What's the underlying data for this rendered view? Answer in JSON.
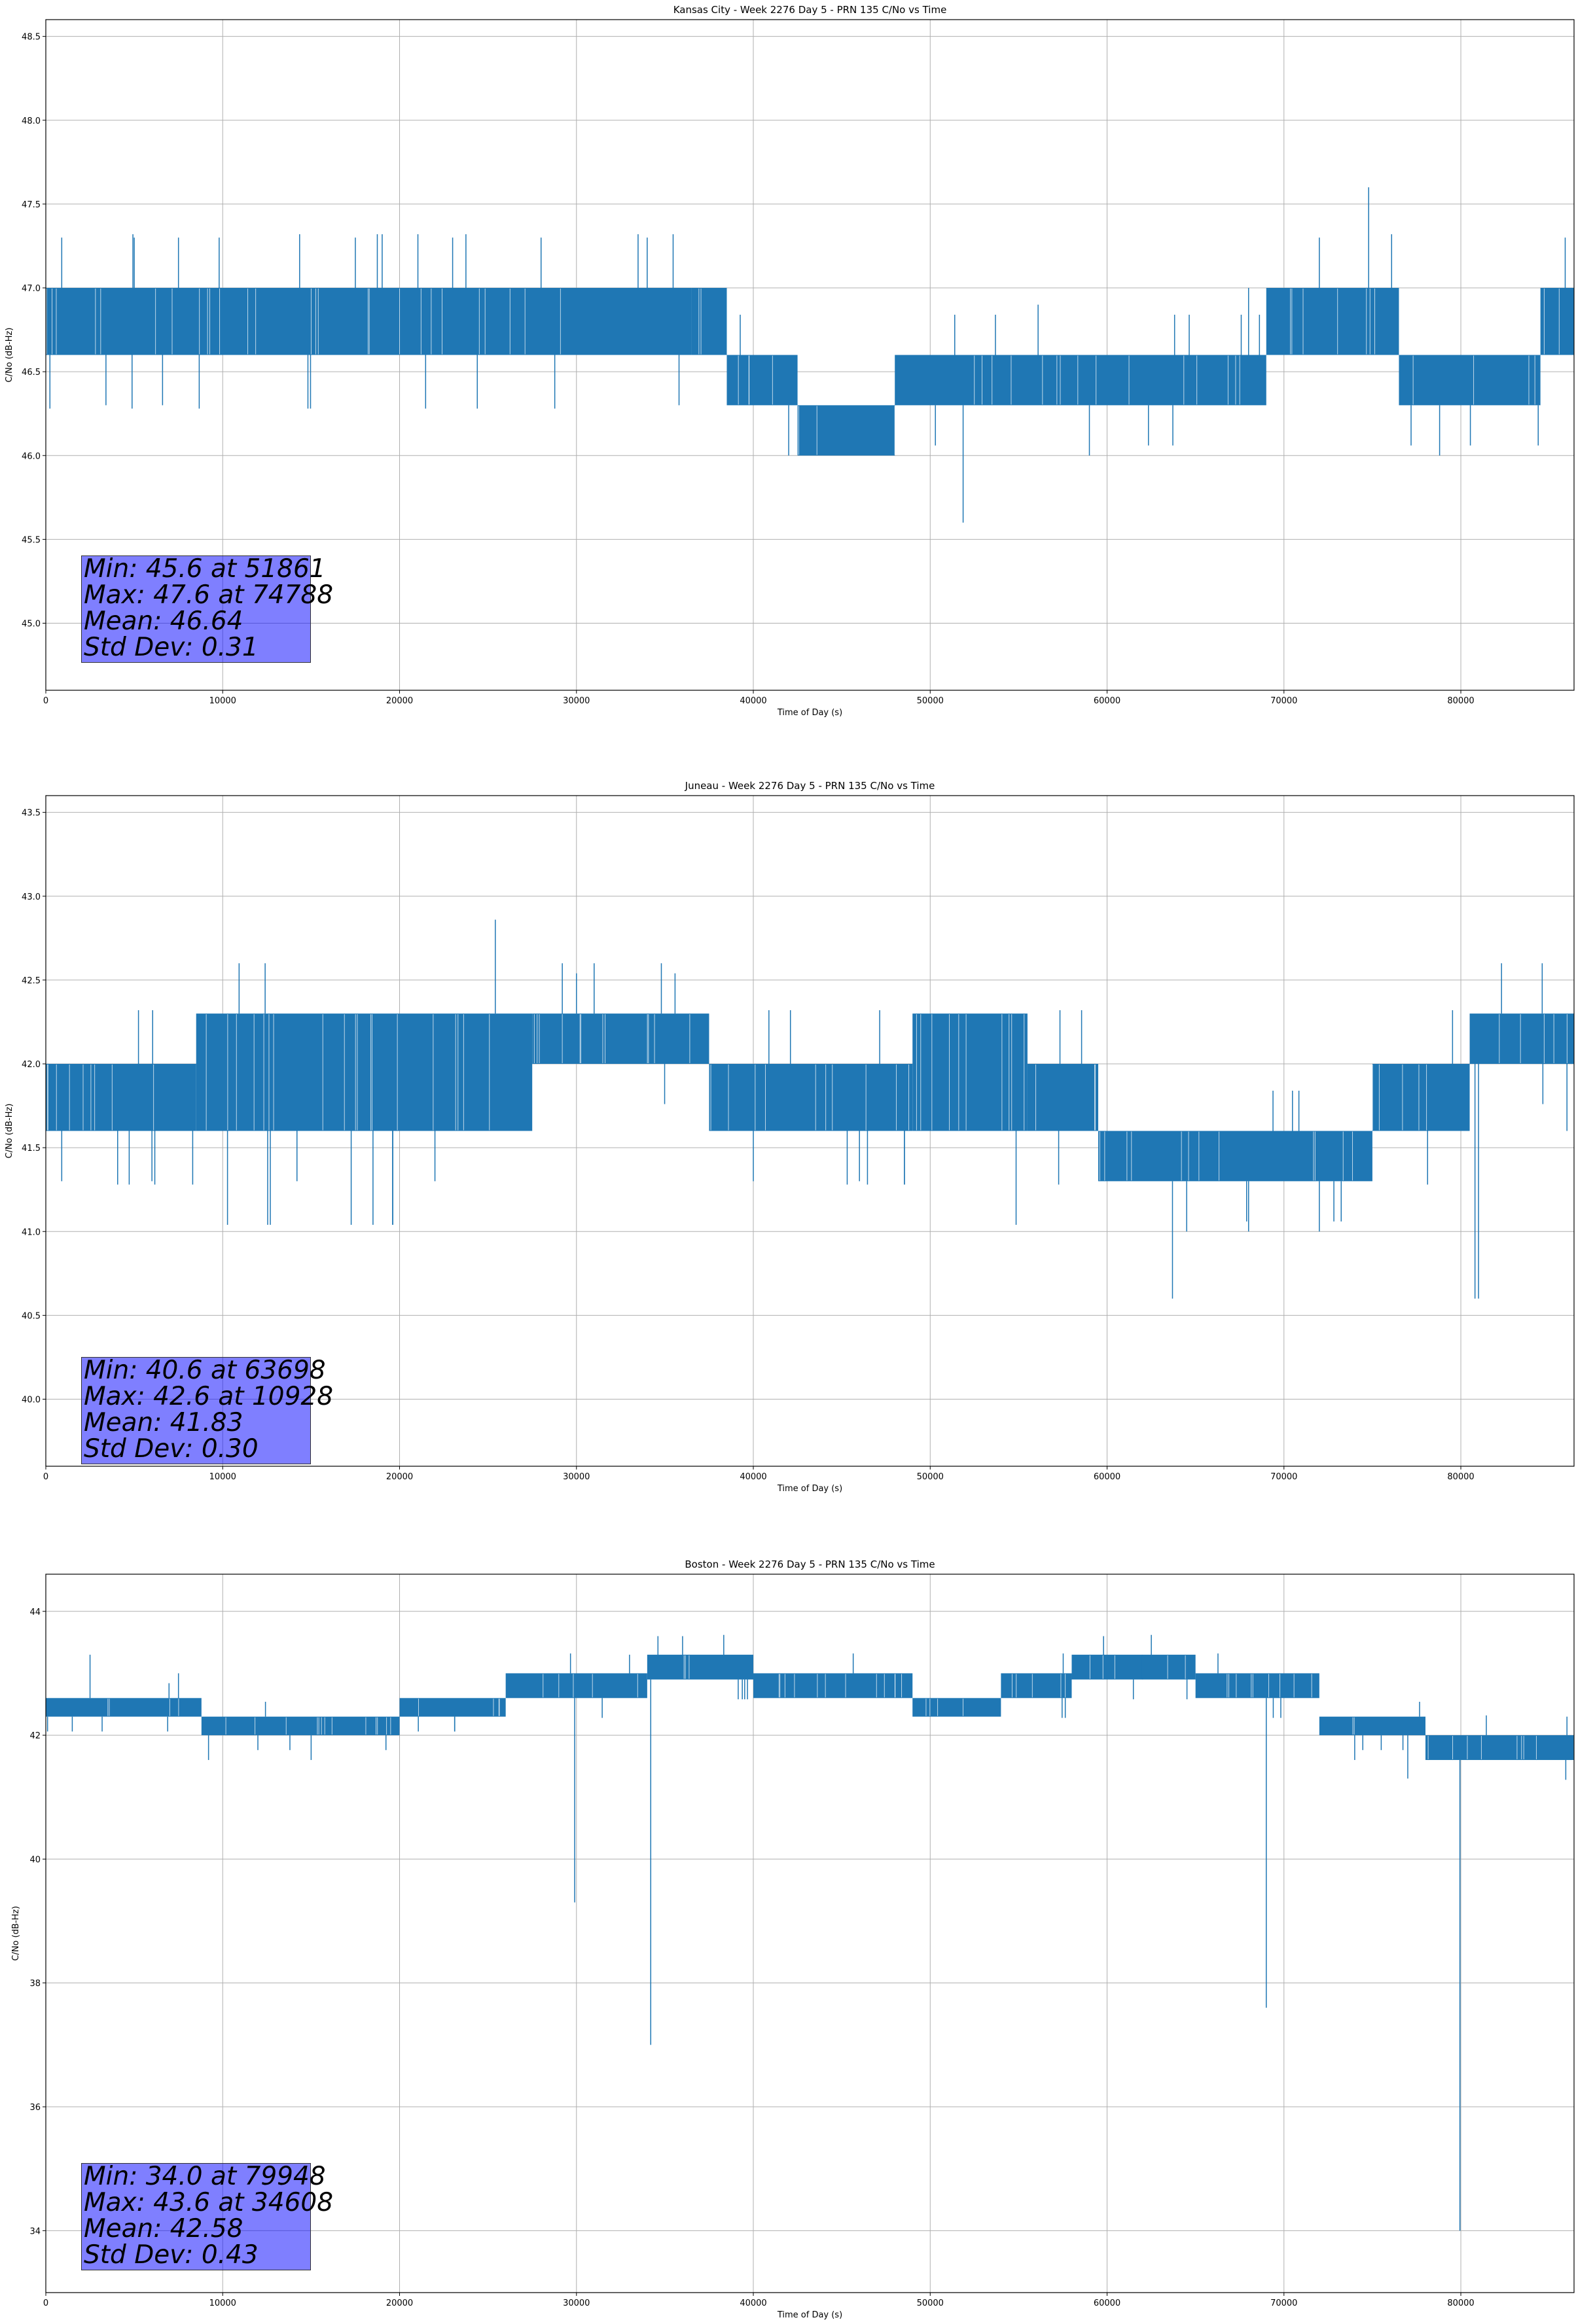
{
  "chart_data": [
    {
      "type": "line",
      "title": "Kansas City - Week 2276 Day 5 - PRN 135 C/No vs Time",
      "xlabel": "Time of Day (s)",
      "ylabel": "C/No (dB-Hz)",
      "xlim": [
        0,
        86400
      ],
      "ylim": [
        44.6,
        48.6
      ],
      "xticks": [
        0,
        10000,
        20000,
        30000,
        40000,
        50000,
        60000,
        70000,
        80000
      ],
      "yticks": [
        "45.0",
        "45.5",
        "46.0",
        "46.5",
        "47.0",
        "47.5",
        "48.0",
        "48.5"
      ],
      "grid": true,
      "color": "#1f77b4",
      "series": [
        {
          "name": "C/No",
          "bands": [
            {
              "x": [
                0,
                36500
              ],
              "lo": 46.6,
              "hi": 47.0
            },
            {
              "x": [
                36500,
                38500
              ],
              "lo": 46.6,
              "hi": 47.0
            },
            {
              "x": [
                38500,
                42500
              ],
              "lo": 46.3,
              "hi": 46.6
            },
            {
              "x": [
                42500,
                48000
              ],
              "lo": 46.0,
              "hi": 46.3
            },
            {
              "x": [
                48000,
                69000
              ],
              "lo": 46.3,
              "hi": 46.6
            },
            {
              "x": [
                69000,
                76500
              ],
              "lo": 46.6,
              "hi": 47.0
            },
            {
              "x": [
                76500,
                84500
              ],
              "lo": 46.3,
              "hi": 46.6
            },
            {
              "x": [
                84500,
                86400
              ],
              "lo": 46.6,
              "hi": 47.0
            }
          ],
          "spikes": [
            {
              "x": 51861,
              "y": 45.6
            },
            {
              "x": 74788,
              "y": 47.6
            },
            {
              "x": 3400,
              "y": 46.3
            },
            {
              "x": 6600,
              "y": 46.3
            },
            {
              "x": 900,
              "y": 47.3
            },
            {
              "x": 5000,
              "y": 47.3
            },
            {
              "x": 7500,
              "y": 47.3
            },
            {
              "x": 9800,
              "y": 47.3
            },
            {
              "x": 17500,
              "y": 47.3
            },
            {
              "x": 23000,
              "y": 47.3
            },
            {
              "x": 28000,
              "y": 47.3
            },
            {
              "x": 34000,
              "y": 47.3
            },
            {
              "x": 35800,
              "y": 46.3
            },
            {
              "x": 42000,
              "y": 46.0
            },
            {
              "x": 56100,
              "y": 46.9
            },
            {
              "x": 59000,
              "y": 46.0
            },
            {
              "x": 68000,
              "y": 47.0
            },
            {
              "x": 72000,
              "y": 47.3
            },
            {
              "x": 78800,
              "y": 46.0
            },
            {
              "x": 85900,
              "y": 47.3
            }
          ]
        }
      ],
      "stats": {
        "min": "Min: 45.6 at 51861",
        "max": "Max: 47.6 at 74788",
        "mean": "Mean: 46.64",
        "std": "Std Dev: 0.31"
      }
    },
    {
      "type": "line",
      "title": "Juneau - Week 2276 Day 5 - PRN 135 C/No vs Time",
      "xlabel": "Time of Day (s)",
      "ylabel": "C/No (dB-Hz)",
      "xlim": [
        0,
        86400
      ],
      "ylim": [
        39.6,
        43.6
      ],
      "xticks": [
        0,
        10000,
        20000,
        30000,
        40000,
        50000,
        60000,
        70000,
        80000
      ],
      "yticks": [
        "40.0",
        "40.5",
        "41.0",
        "41.5",
        "42.0",
        "42.5",
        "43.0",
        "43.5"
      ],
      "grid": true,
      "color": "#1f77b4",
      "series": [
        {
          "name": "C/No",
          "bands": [
            {
              "x": [
                0,
                8500
              ],
              "lo": 41.6,
              "hi": 42.0
            },
            {
              "x": [
                8500,
                27500
              ],
              "lo": 41.6,
              "hi": 42.3
            },
            {
              "x": [
                27500,
                37500
              ],
              "lo": 42.0,
              "hi": 42.3
            },
            {
              "x": [
                37500,
                49000
              ],
              "lo": 41.6,
              "hi": 42.0
            },
            {
              "x": [
                49000,
                55500
              ],
              "lo": 41.6,
              "hi": 42.3
            },
            {
              "x": [
                55500,
                59500
              ],
              "lo": 41.6,
              "hi": 42.0
            },
            {
              "x": [
                59500,
                75000
              ],
              "lo": 41.3,
              "hi": 41.6
            },
            {
              "x": [
                75000,
                80500
              ],
              "lo": 41.6,
              "hi": 42.0
            },
            {
              "x": [
                80500,
                86400
              ],
              "lo": 42.0,
              "hi": 42.3
            }
          ],
          "spikes": [
            {
              "x": 63698,
              "y": 40.6
            },
            {
              "x": 10928,
              "y": 42.6
            },
            {
              "x": 12400,
              "y": 42.6
            },
            {
              "x": 29200,
              "y": 42.6
            },
            {
              "x": 31000,
              "y": 42.6
            },
            {
              "x": 34800,
              "y": 42.6
            },
            {
              "x": 900,
              "y": 41.3
            },
            {
              "x": 6000,
              "y": 41.3
            },
            {
              "x": 14200,
              "y": 41.3
            },
            {
              "x": 22000,
              "y": 41.3
            },
            {
              "x": 40000,
              "y": 41.3
            },
            {
              "x": 46000,
              "y": 41.3
            },
            {
              "x": 64500,
              "y": 41.0
            },
            {
              "x": 68000,
              "y": 41.0
            },
            {
              "x": 72000,
              "y": 41.0
            },
            {
              "x": 80800,
              "y": 40.6
            },
            {
              "x": 81000,
              "y": 40.6
            },
            {
              "x": 82300,
              "y": 42.6
            },
            {
              "x": 84600,
              "y": 42.6
            },
            {
              "x": 86000,
              "y": 41.6
            }
          ]
        }
      ],
      "stats": {
        "min": "Min: 40.6 at 63698",
        "max": "Max: 42.6 at 10928",
        "mean": "Mean: 41.83",
        "std": "Std Dev: 0.30"
      }
    },
    {
      "type": "line",
      "title": "Boston - Week 2276 Day 5 - PRN 135 C/No vs Time",
      "xlabel": "Time of Day (s)",
      "ylabel": "C/No (dB-Hz)",
      "xlim": [
        0,
        86400
      ],
      "ylim": [
        33.0,
        44.6
      ],
      "xticks": [
        0,
        10000,
        20000,
        30000,
        40000,
        50000,
        60000,
        70000,
        80000
      ],
      "yticks": [
        "34",
        "36",
        "38",
        "40",
        "42",
        "44"
      ],
      "grid": true,
      "color": "#1f77b4",
      "series": [
        {
          "name": "C/No",
          "bands": [
            {
              "x": [
                0,
                8800
              ],
              "lo": 42.3,
              "hi": 42.6
            },
            {
              "x": [
                8800,
                20000
              ],
              "lo": 42.0,
              "hi": 42.3
            },
            {
              "x": [
                20000,
                26000
              ],
              "lo": 42.3,
              "hi": 42.6
            },
            {
              "x": [
                26000,
                34000
              ],
              "lo": 42.6,
              "hi": 43.0
            },
            {
              "x": [
                34000,
                40000
              ],
              "lo": 42.9,
              "hi": 43.3
            },
            {
              "x": [
                40000,
                49000
              ],
              "lo": 42.6,
              "hi": 43.0
            },
            {
              "x": [
                49000,
                54000
              ],
              "lo": 42.3,
              "hi": 42.6
            },
            {
              "x": [
                54000,
                58000
              ],
              "lo": 42.6,
              "hi": 43.0
            },
            {
              "x": [
                58000,
                65000
              ],
              "lo": 42.9,
              "hi": 43.3
            },
            {
              "x": [
                65000,
                72000
              ],
              "lo": 42.6,
              "hi": 43.0
            },
            {
              "x": [
                72000,
                78000
              ],
              "lo": 42.0,
              "hi": 42.3
            },
            {
              "x": [
                78000,
                86400
              ],
              "lo": 41.6,
              "hi": 42.0
            }
          ],
          "spikes": [
            {
              "x": 79948,
              "y": 34.0
            },
            {
              "x": 34608,
              "y": 43.6
            },
            {
              "x": 29900,
              "y": 39.3
            },
            {
              "x": 34200,
              "y": 37.0
            },
            {
              "x": 69000,
              "y": 37.6
            },
            {
              "x": 59800,
              "y": 43.6
            },
            {
              "x": 2500,
              "y": 43.3
            },
            {
              "x": 7500,
              "y": 43.0
            },
            {
              "x": 9200,
              "y": 41.6
            },
            {
              "x": 15000,
              "y": 41.6
            },
            {
              "x": 33000,
              "y": 43.3
            },
            {
              "x": 36000,
              "y": 43.6
            },
            {
              "x": 62000,
              "y": 43.3
            },
            {
              "x": 74000,
              "y": 41.6
            },
            {
              "x": 77000,
              "y": 41.3
            },
            {
              "x": 83000,
              "y": 41.6
            },
            {
              "x": 86000,
              "y": 42.3
            }
          ]
        }
      ],
      "stats": {
        "min": "Min: 34.0 at 79948",
        "max": "Max: 43.6 at 34608",
        "mean": "Mean: 42.58",
        "std": "Std Dev: 0.43"
      }
    }
  ]
}
